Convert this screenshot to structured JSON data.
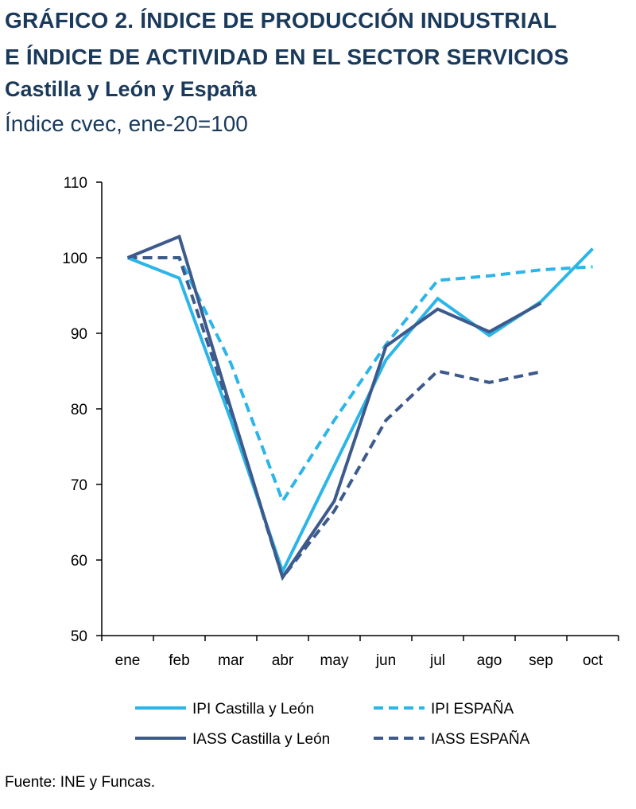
{
  "title": {
    "line1": "GRÁFICO 2. ÍNDICE DE PRODUCCIÓN INDUSTRIAL",
    "line2": "E ÍNDICE DE ACTIVIDAD EN EL SECTOR SERVICIOS"
  },
  "subtitle": "Castilla y León y España",
  "units": "Índice cvec, ene-20=100",
  "source": "Fuente: INE y Funcas.",
  "colors": {
    "light_blue": "#2cb5e8",
    "dark_blue": "#3d5a8c",
    "title": "#1a3a5c"
  },
  "chart_data": {
    "type": "line",
    "categories": [
      "ene",
      "feb",
      "mar",
      "abr",
      "may",
      "jun",
      "jul",
      "ago",
      "sep",
      "oct"
    ],
    "ylim": [
      50,
      110
    ],
    "yticks": [
      50,
      60,
      70,
      80,
      90,
      100,
      110
    ],
    "grid": false,
    "legend_position": "bottom",
    "series": [
      {
        "name": "IPI Castilla y León",
        "color": "#2cb5e8",
        "dash": false,
        "values": [
          100,
          97.3,
          78.5,
          58.5,
          72.5,
          86.5,
          94.6,
          89.7,
          94.2,
          101.2
        ]
      },
      {
        "name": "IPI ESPAÑA",
        "color": "#2cb5e8",
        "dash": true,
        "values": [
          100,
          100,
          86.0,
          67.8,
          78.5,
          88.5,
          97.0,
          97.6,
          98.4,
          98.8
        ]
      },
      {
        "name": "IASS Castilla y León",
        "color": "#3d5a8c",
        "dash": false,
        "values": [
          100,
          102.8,
          80.0,
          57.7,
          67.8,
          88.3,
          93.2,
          90.2,
          94.0,
          null
        ]
      },
      {
        "name": "IASS ESPAÑA",
        "color": "#3d5a8c",
        "dash": true,
        "values": [
          100,
          100,
          79.5,
          57.7,
          66.5,
          78.5,
          85.0,
          83.5,
          84.9,
          null
        ]
      }
    ]
  }
}
